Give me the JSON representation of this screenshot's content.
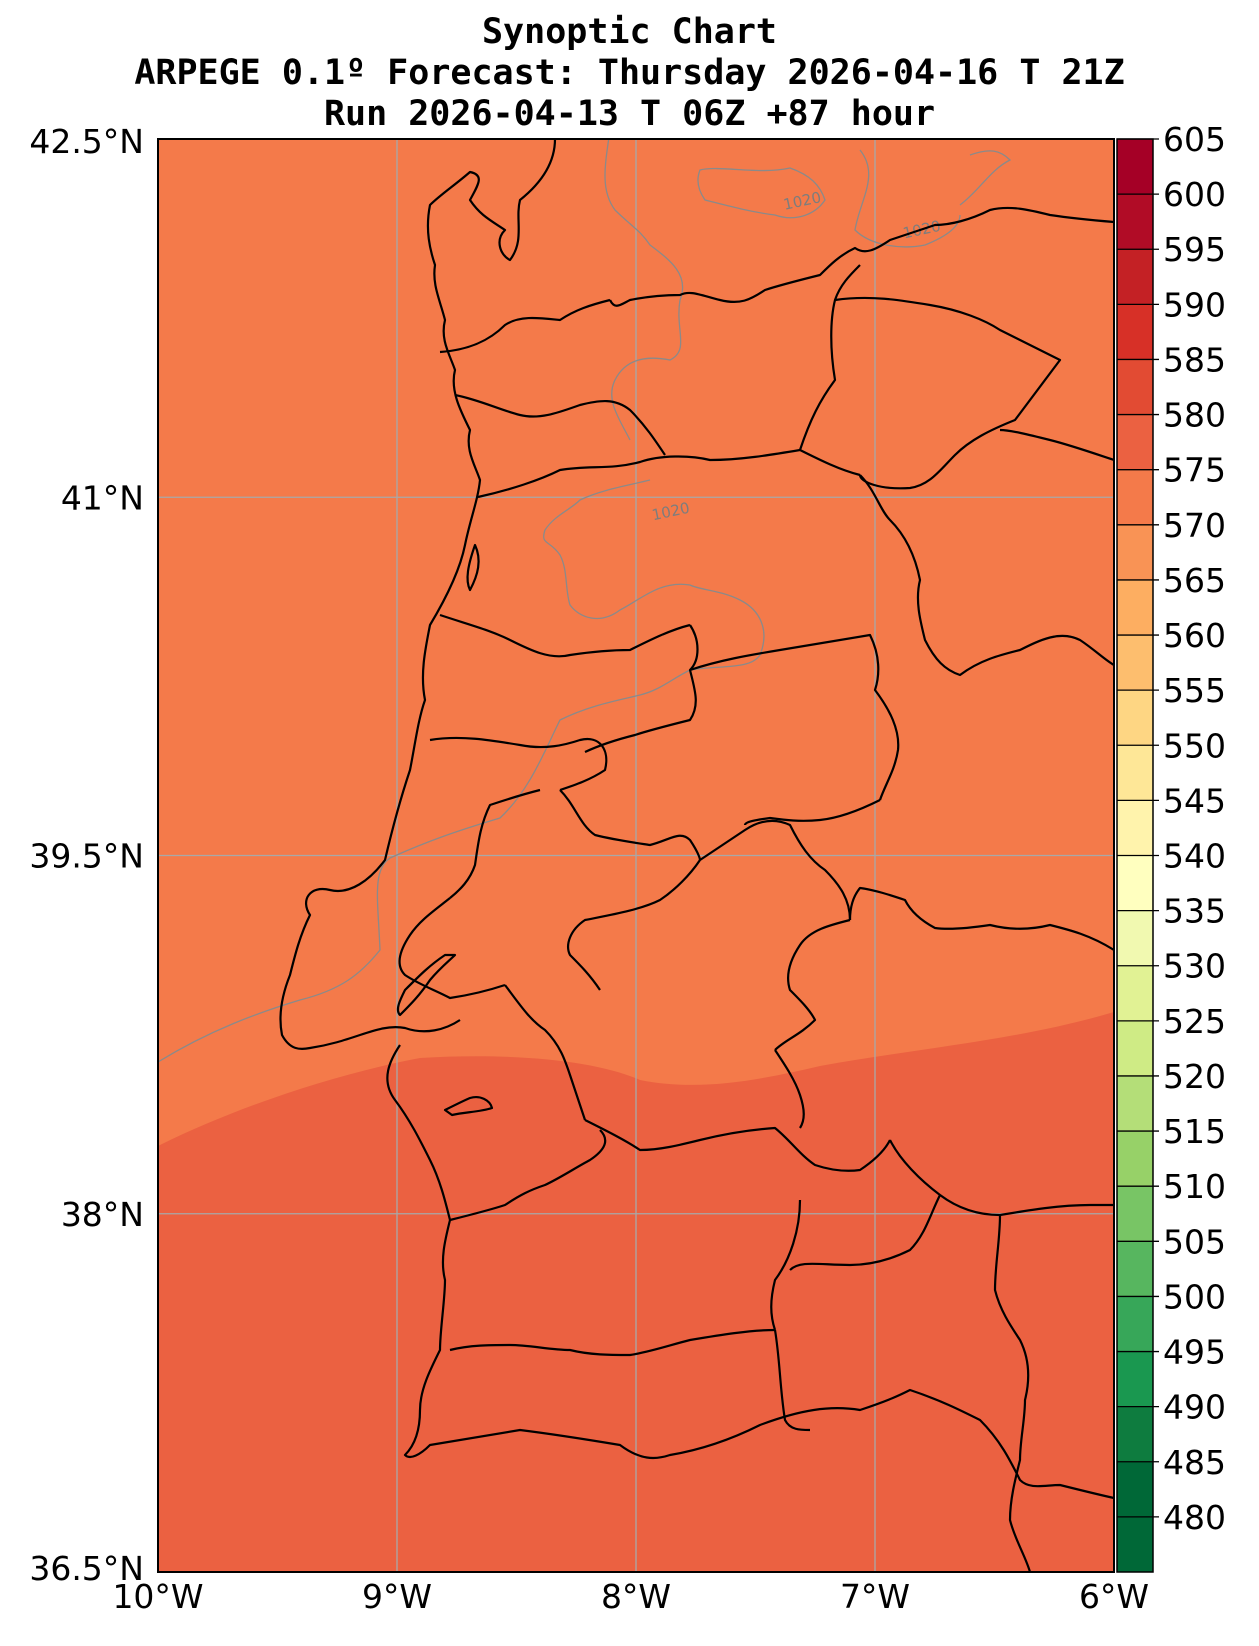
{
  "title": {
    "line1": "Synoptic Chart",
    "line2": "ARPEGE 0.1º Forecast: Thursday 2026-04-16 T 21Z",
    "line3": "Run 2026-04-13 T 06Z +87 hour"
  },
  "map": {
    "lon_range": [
      -10,
      -6
    ],
    "lat_range": [
      36.5,
      42.5
    ],
    "lon_ticks": [
      {
        "value": -10,
        "label": "10°W"
      },
      {
        "value": -9,
        "label": "9°W"
      },
      {
        "value": -8,
        "label": "8°W"
      },
      {
        "value": -7,
        "label": "7°W"
      },
      {
        "value": -6,
        "label": "6°W"
      }
    ],
    "lat_ticks": [
      {
        "value": 42.5,
        "label": "42.5°N"
      },
      {
        "value": 41,
        "label": "41°N"
      },
      {
        "value": 39.5,
        "label": "39.5°N"
      },
      {
        "value": 38,
        "label": "38°N"
      },
      {
        "value": 36.5,
        "label": "36.5°N"
      }
    ],
    "gridlines": true,
    "field_colors": {
      "upper_band": "#f47a4a",
      "lower_band": "#eb6141"
    },
    "isobar_label": "1020",
    "isobar_labels": [
      {
        "text": "1020",
        "lon": -7.3,
        "lat": 42.22
      },
      {
        "text": "1020",
        "lon": -6.8,
        "lat": 42.1
      },
      {
        "text": "1020",
        "lon": -7.85,
        "lat": 40.92
      }
    ]
  },
  "colorbar": {
    "labels": [
      "480",
      "485",
      "490",
      "495",
      "500",
      "505",
      "510",
      "515",
      "520",
      "525",
      "530",
      "535",
      "540",
      "545",
      "550",
      "555",
      "560",
      "565",
      "570",
      "575",
      "580",
      "585",
      "590",
      "595",
      "600",
      "605"
    ],
    "colors": [
      "#006837",
      "#0e7c3f",
      "#1a9850",
      "#37a759",
      "#57b65f",
      "#78c565",
      "#97d168",
      "#b4de78",
      "#cfeb85",
      "#e1f294",
      "#f1f9b0",
      "#ffffbf",
      "#fff3ac",
      "#fee797",
      "#fed683",
      "#fdbe6e",
      "#fdae61",
      "#f99355",
      "#f47a4a",
      "#eb6141",
      "#e24b33",
      "#d73027",
      "#c42125",
      "#b10c26",
      "#a50026"
    ]
  }
}
